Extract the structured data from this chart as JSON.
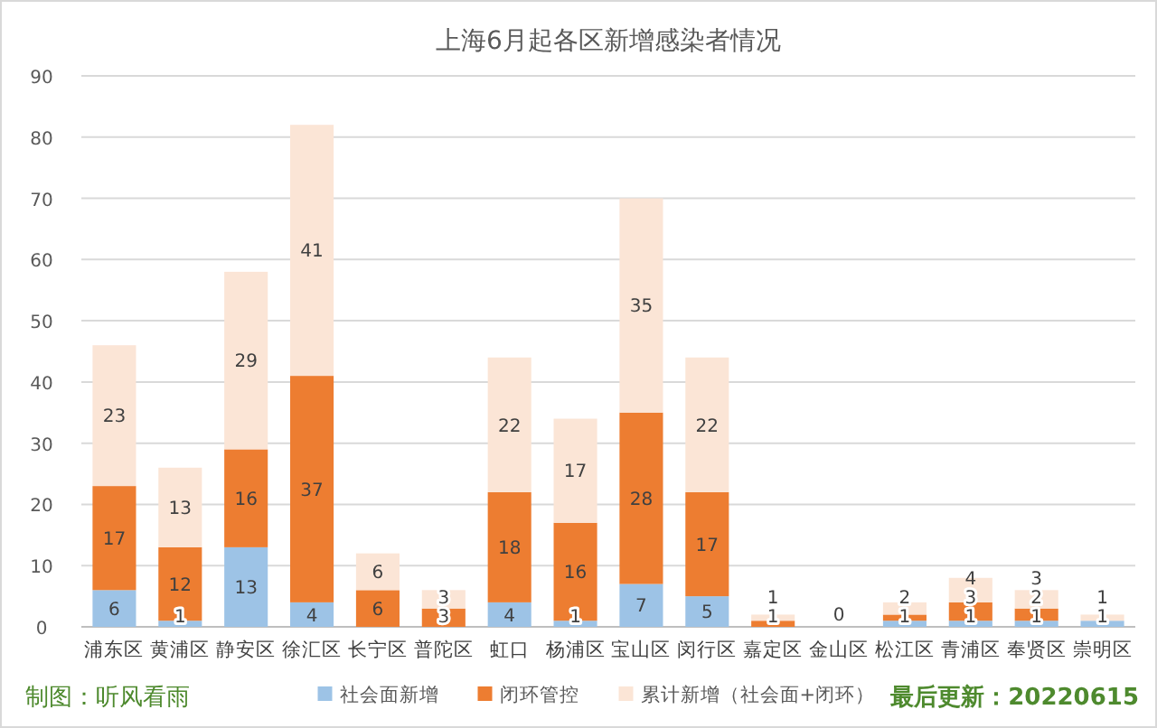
{
  "chart_data": {
    "type": "bar",
    "title": "上海6月起各区新增感染者情况",
    "stacked": true,
    "categories": [
      "浦东区",
      "黄浦区",
      "静安区",
      "徐汇区",
      "长宁区",
      "普陀区",
      "虹口",
      "杨浦区",
      "宝山区",
      "闵行区",
      "嘉定区",
      "金山区",
      "松江区",
      "青浦区",
      "奉贤区",
      "崇明区"
    ],
    "series": [
      {
        "name": "社会面新增",
        "color": "#9dc3e6",
        "values": [
          6,
          1,
          13,
          4,
          0,
          0,
          4,
          1,
          7,
          5,
          0,
          0,
          1,
          1,
          1,
          1
        ],
        "value_labels": [
          "6",
          "1",
          "13",
          "4",
          null,
          null,
          "4",
          "1",
          "7",
          "5",
          null,
          null,
          "1",
          "1",
          "1",
          "1"
        ]
      },
      {
        "name": "闭环管控",
        "color": "#ed7d31",
        "values": [
          17,
          12,
          16,
          37,
          6,
          3,
          18,
          16,
          28,
          17,
          1,
          0,
          1,
          3,
          2,
          0
        ],
        "value_labels": [
          "17",
          "12",
          "16",
          "37",
          "6",
          "3",
          "18",
          "16",
          "28",
          "17",
          "1",
          null,
          null,
          "3",
          "2",
          null
        ]
      },
      {
        "name": "累计新增（社会面+闭环）",
        "color": "#fbe5d6",
        "values": [
          23,
          13,
          29,
          41,
          6,
          3,
          22,
          17,
          35,
          22,
          1,
          0,
          2,
          4,
          3,
          1
        ],
        "value_labels": [
          "23",
          "13",
          "29",
          "41",
          "6",
          "3",
          "22",
          "17",
          "35",
          "22",
          "1",
          "0",
          "2",
          "4",
          "3",
          "1"
        ]
      }
    ],
    "ylim": [
      0,
      90
    ],
    "yticks": [
      0,
      10,
      20,
      30,
      40,
      50,
      60,
      70,
      80,
      90
    ],
    "grid": "y",
    "legend": "bottom",
    "annotations": [
      "制图：听风看雨",
      "最后更新：20220615"
    ]
  }
}
